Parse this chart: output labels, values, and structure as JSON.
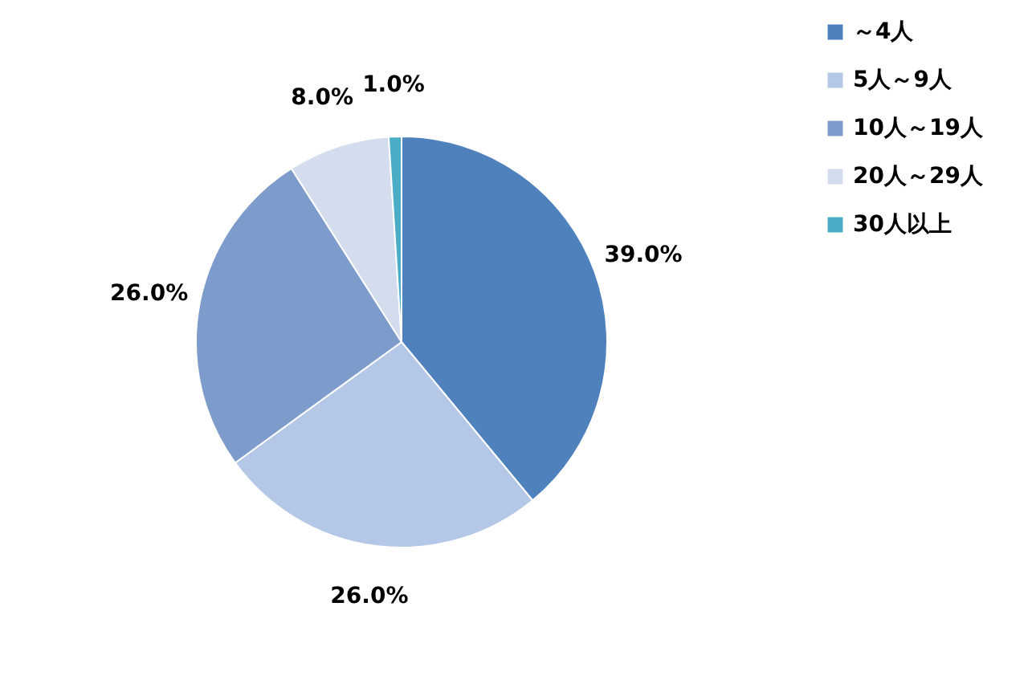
{
  "chart_data": {
    "type": "pie",
    "categories": [
      "～4人",
      "5人～9人",
      "10人～19人",
      "20人～29人",
      "30人以上"
    ],
    "values": [
      39.0,
      26.0,
      26.0,
      8.0,
      1.0
    ],
    "colors": [
      "#4f81bd",
      "#b4c7e7",
      "#7d9ccb",
      "#d3dded",
      "#4bacc6"
    ],
    "value_labels": [
      "39.0%",
      "26.0%",
      "26.0%",
      "8.0%",
      "1.0%"
    ],
    "legend": "right"
  }
}
